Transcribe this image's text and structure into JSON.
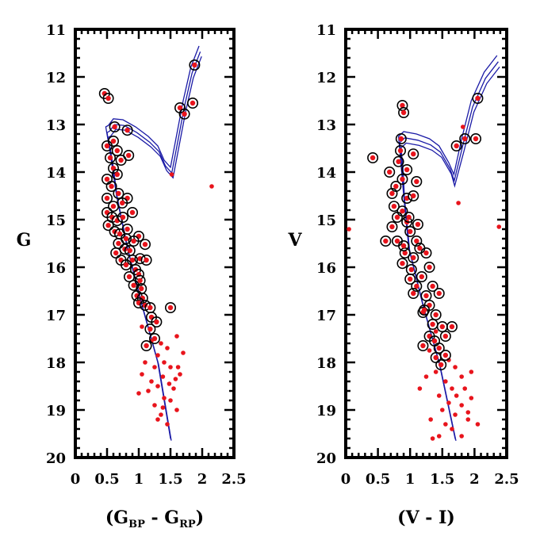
{
  "chart_data": [
    {
      "type": "scatter",
      "panel": "left",
      "ylabel": "G",
      "xlabel_parts": [
        "(G",
        "BP",
        " - G",
        "RP",
        ")"
      ],
      "xlim": [
        0,
        2.5
      ],
      "ylim": [
        20,
        11
      ],
      "xticks": [
        0,
        0.5,
        1,
        1.5,
        2,
        2.5
      ],
      "xtick_labels": [
        "0",
        "0.5",
        "1",
        "1.5",
        "2",
        "2.5"
      ],
      "yticks": [
        11,
        12,
        13,
        14,
        15,
        16,
        17,
        18,
        19,
        20
      ],
      "ytick_labels": [
        "11",
        "12",
        "13",
        "14",
        "15",
        "16",
        "17",
        "18",
        "19",
        "20"
      ],
      "series": [
        {
          "name": "Isochrones",
          "style": "line",
          "color": "#1a1aa6"
        },
        {
          "name": "Cluster members",
          "style": "circled red dot",
          "color": "#e8141c",
          "points": [
            [
              0.46,
              12.35
            ],
            [
              0.52,
              12.45
            ],
            [
              0.62,
              13.05
            ],
            [
              0.82,
              13.12
            ],
            [
              1.88,
              11.75
            ],
            [
              1.85,
              12.55
            ],
            [
              1.65,
              12.65
            ],
            [
              1.72,
              12.78
            ],
            [
              0.5,
              13.45
            ],
            [
              0.6,
              13.35
            ],
            [
              0.66,
              13.55
            ],
            [
              0.55,
              13.7
            ],
            [
              0.72,
              13.75
            ],
            [
              0.6,
              13.92
            ],
            [
              0.66,
              14.05
            ],
            [
              0.84,
              13.65
            ],
            [
              0.5,
              14.15
            ],
            [
              0.57,
              14.3
            ],
            [
              0.5,
              14.55
            ],
            [
              0.68,
              14.45
            ],
            [
              0.82,
              14.55
            ],
            [
              0.74,
              14.65
            ],
            [
              0.6,
              14.72
            ],
            [
              0.5,
              14.85
            ],
            [
              0.58,
              14.95
            ],
            [
              0.66,
              15.02
            ],
            [
              0.75,
              14.95
            ],
            [
              0.52,
              15.12
            ],
            [
              0.62,
              15.25
            ],
            [
              0.7,
              15.3
            ],
            [
              0.8,
              15.4
            ],
            [
              0.68,
              15.5
            ],
            [
              0.78,
              15.62
            ],
            [
              0.64,
              15.7
            ],
            [
              0.86,
              15.65
            ],
            [
              0.9,
              15.85
            ],
            [
              0.72,
              15.85
            ],
            [
              1.02,
              15.82
            ],
            [
              0.95,
              16.05
            ],
            [
              1.0,
              16.15
            ],
            [
              0.85,
              16.2
            ],
            [
              0.8,
              15.95
            ],
            [
              0.92,
              16.38
            ],
            [
              1.04,
              16.45
            ],
            [
              0.97,
              16.6
            ],
            [
              1.06,
              16.65
            ],
            [
              1.0,
              16.75
            ],
            [
              1.1,
              16.8
            ],
            [
              1.18,
              16.85
            ],
            [
              1.5,
              16.85
            ],
            [
              1.2,
              17.05
            ],
            [
              1.28,
              17.15
            ],
            [
              1.18,
              17.3
            ],
            [
              1.25,
              17.5
            ],
            [
              1.12,
              17.65
            ],
            [
              0.9,
              14.85
            ],
            [
              0.82,
              15.2
            ],
            [
              1.0,
              15.35
            ],
            [
              1.1,
              15.52
            ],
            [
              0.92,
              15.45
            ],
            [
              1.12,
              15.85
            ],
            [
              1.02,
              16.28
            ]
          ]
        },
        {
          "name": "Field stars",
          "style": "red dot",
          "color": "#e8141c",
          "points": [
            [
              1.52,
              14.05
            ],
            [
              2.15,
              14.3
            ],
            [
              1.05,
              17.25
            ],
            [
              1.2,
              17.55
            ],
            [
              1.35,
              17.6
            ],
            [
              1.45,
              17.7
            ],
            [
              1.6,
              17.45
            ],
            [
              1.3,
              17.85
            ],
            [
              1.1,
              18.0
            ],
            [
              1.25,
              18.1
            ],
            [
              1.4,
              18.0
            ],
            [
              1.5,
              18.1
            ],
            [
              1.62,
              18.1
            ],
            [
              1.38,
              18.3
            ],
            [
              1.3,
              18.5
            ],
            [
              1.48,
              18.45
            ],
            [
              1.55,
              18.55
            ],
            [
              1.2,
              18.4
            ],
            [
              1.0,
              18.65
            ],
            [
              1.4,
              18.75
            ],
            [
              1.25,
              18.9
            ],
            [
              1.6,
              19.0
            ],
            [
              1.35,
              19.1
            ],
            [
              1.3,
              19.2
            ],
            [
              1.45,
              19.3
            ],
            [
              1.65,
              18.25
            ],
            [
              1.58,
              18.35
            ],
            [
              1.15,
              18.6
            ],
            [
              1.7,
              17.8
            ],
            [
              1.05,
              18.25
            ],
            [
              1.5,
              18.8
            ],
            [
              1.38,
              18.95
            ]
          ]
        }
      ]
    },
    {
      "type": "scatter",
      "panel": "right",
      "ylabel": "V",
      "xlabel_parts": [
        "(V - I)"
      ],
      "xlim": [
        0,
        2.5
      ],
      "ylim": [
        20,
        11
      ],
      "xticks": [
        0,
        0.5,
        1,
        1.5,
        2,
        2.5
      ],
      "xtick_labels": [
        "0",
        "0.5",
        "1",
        "1.5",
        "2",
        "2.5"
      ],
      "yticks": [
        11,
        12,
        13,
        14,
        15,
        16,
        17,
        18,
        19,
        20
      ],
      "ytick_labels": [
        "11",
        "12",
        "13",
        "14",
        "15",
        "16",
        "17",
        "18",
        "19",
        "20"
      ],
      "series": [
        {
          "name": "Isochrones",
          "style": "line",
          "color": "#1a1aa6"
        },
        {
          "name": "Cluster members",
          "style": "circled red dot",
          "color": "#e8141c",
          "points": [
            [
              0.88,
              12.6
            ],
            [
              0.9,
              12.75
            ],
            [
              0.86,
              13.3
            ],
            [
              0.85,
              13.55
            ],
            [
              2.05,
              12.45
            ],
            [
              1.85,
              13.3
            ],
            [
              2.02,
              13.3
            ],
            [
              1.72,
              13.45
            ],
            [
              1.05,
              13.62
            ],
            [
              0.42,
              13.7
            ],
            [
              0.82,
              13.78
            ],
            [
              0.95,
              13.95
            ],
            [
              0.68,
              14.0
            ],
            [
              0.88,
              14.15
            ],
            [
              1.1,
              14.2
            ],
            [
              0.78,
              14.3
            ],
            [
              0.72,
              14.45
            ],
            [
              0.95,
              14.55
            ],
            [
              1.05,
              14.5
            ],
            [
              0.75,
              14.72
            ],
            [
              0.88,
              14.82
            ],
            [
              0.8,
              14.95
            ],
            [
              0.95,
              15.05
            ],
            [
              0.72,
              15.15
            ],
            [
              1.0,
              15.25
            ],
            [
              0.62,
              15.45
            ],
            [
              0.8,
              15.45
            ],
            [
              1.1,
              15.45
            ],
            [
              1.15,
              15.6
            ],
            [
              0.92,
              15.7
            ],
            [
              1.05,
              15.8
            ],
            [
              1.25,
              15.7
            ],
            [
              0.88,
              15.92
            ],
            [
              1.02,
              16.05
            ],
            [
              1.3,
              16.0
            ],
            [
              1.18,
              16.2
            ],
            [
              1.1,
              16.4
            ],
            [
              1.35,
              16.4
            ],
            [
              1.25,
              16.6
            ],
            [
              1.45,
              16.55
            ],
            [
              1.3,
              16.8
            ],
            [
              1.2,
              16.95
            ],
            [
              1.4,
              17.0
            ],
            [
              1.35,
              17.2
            ],
            [
              1.5,
              17.25
            ],
            [
              1.65,
              17.25
            ],
            [
              1.3,
              17.45
            ],
            [
              1.55,
              17.45
            ],
            [
              1.2,
              17.65
            ],
            [
              1.45,
              17.7
            ],
            [
              1.4,
              17.9
            ],
            [
              1.55,
              17.85
            ],
            [
              1.48,
              18.05
            ],
            [
              0.98,
              14.95
            ],
            [
              1.12,
              15.1
            ],
            [
              1.0,
              16.25
            ],
            [
              1.22,
              16.9
            ],
            [
              0.9,
              15.55
            ],
            [
              1.05,
              16.55
            ],
            [
              1.38,
              17.55
            ]
          ]
        },
        {
          "name": "Field stars",
          "style": "red dot",
          "color": "#e8141c",
          "points": [
            [
              0.05,
              15.2
            ],
            [
              2.38,
              15.15
            ],
            [
              1.75,
              14.65
            ],
            [
              1.82,
              13.05
            ],
            [
              1.4,
              17.35
            ],
            [
              1.3,
              17.75
            ],
            [
              1.6,
              17.95
            ],
            [
              1.4,
              18.2
            ],
            [
              1.25,
              18.3
            ],
            [
              1.7,
              18.1
            ],
            [
              1.8,
              18.3
            ],
            [
              1.95,
              18.2
            ],
            [
              1.55,
              18.4
            ],
            [
              1.65,
              18.55
            ],
            [
              1.85,
              18.55
            ],
            [
              1.45,
              18.7
            ],
            [
              1.6,
              18.85
            ],
            [
              1.8,
              18.9
            ],
            [
              1.95,
              18.75
            ],
            [
              1.15,
              18.55
            ],
            [
              1.5,
              19.0
            ],
            [
              1.7,
              19.1
            ],
            [
              1.55,
              19.3
            ],
            [
              1.9,
              19.2
            ],
            [
              1.32,
              19.2
            ],
            [
              1.65,
              19.4
            ],
            [
              1.45,
              19.55
            ],
            [
              1.35,
              19.6
            ],
            [
              1.8,
              19.55
            ],
            [
              2.05,
              19.3
            ],
            [
              1.9,
              19.05
            ],
            [
              1.72,
              18.7
            ]
          ]
        }
      ]
    }
  ]
}
